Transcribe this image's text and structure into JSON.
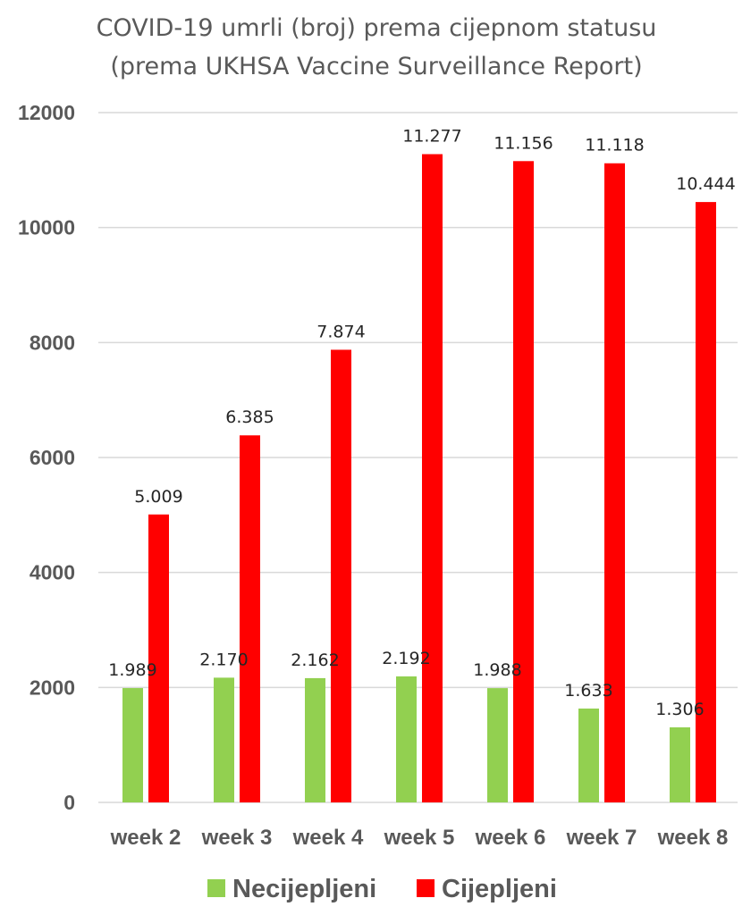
{
  "chart_data": {
    "type": "bar",
    "title_lines": [
      "COVID-19 umrli (broj) prema cijepnom statusu",
      "(prema UKHSA Vaccine Surveillance Report)"
    ],
    "categories": [
      "week 2",
      "week 3",
      "week 4",
      "week 5",
      "week 6",
      "week 7",
      "week 8"
    ],
    "series": [
      {
        "name": "Necijepljeni",
        "color": "#92d050",
        "values": [
          1989,
          2170,
          2162,
          2192,
          1988,
          1633,
          1306
        ],
        "labels": [
          "1.989",
          "2.170",
          "2.162",
          "2.192",
          "1.988",
          "1.633",
          "1.306"
        ]
      },
      {
        "name": "Cijepljeni",
        "color": "#ff0000",
        "values": [
          5009,
          6385,
          7874,
          11277,
          11156,
          11118,
          10444
        ],
        "labels": [
          "5.009",
          "6.385",
          "7.874",
          "11.277",
          "11.156",
          "11.118",
          "10.444"
        ]
      }
    ],
    "ylim": [
      0,
      12000
    ],
    "yticks": [
      "0",
      "2000",
      "4000",
      "6000",
      "8000",
      "10000",
      "12000"
    ],
    "grid": true,
    "legend_position": "bottom"
  }
}
